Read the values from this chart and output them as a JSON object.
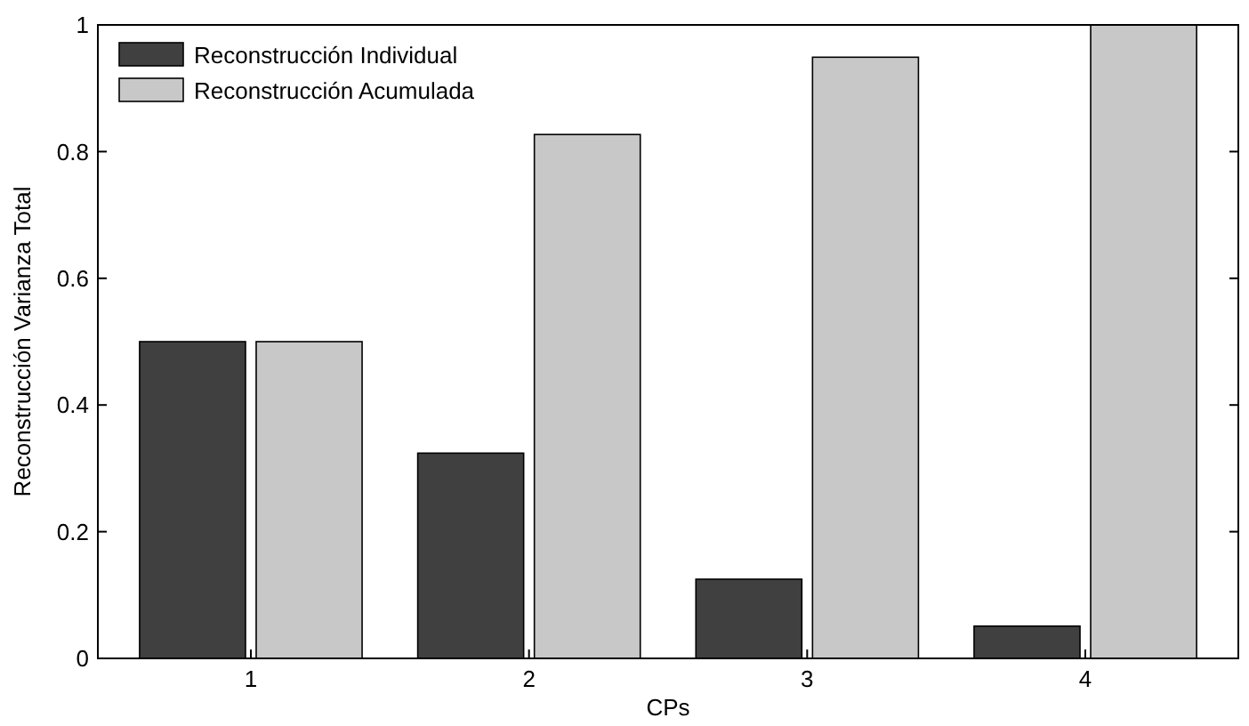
{
  "chart_data": {
    "type": "bar",
    "xlabel": "CPs",
    "ylabel": "Reconstrucción Varianza Total",
    "categories": [
      "1",
      "2",
      "3",
      "4"
    ],
    "series": [
      {
        "name": "Reconstrucción Individual",
        "color": "#404040",
        "values": [
          0.5,
          0.324,
          0.125,
          0.051
        ]
      },
      {
        "name": "Reconstrucción Acumulada",
        "color": "#c8c8c8",
        "values": [
          0.5,
          0.827,
          0.949,
          1.0
        ]
      }
    ],
    "ylim": [
      0,
      1
    ],
    "yticks": [
      0,
      0.2,
      0.4,
      0.6,
      0.8,
      1
    ],
    "grid": false,
    "legend": "top left"
  }
}
